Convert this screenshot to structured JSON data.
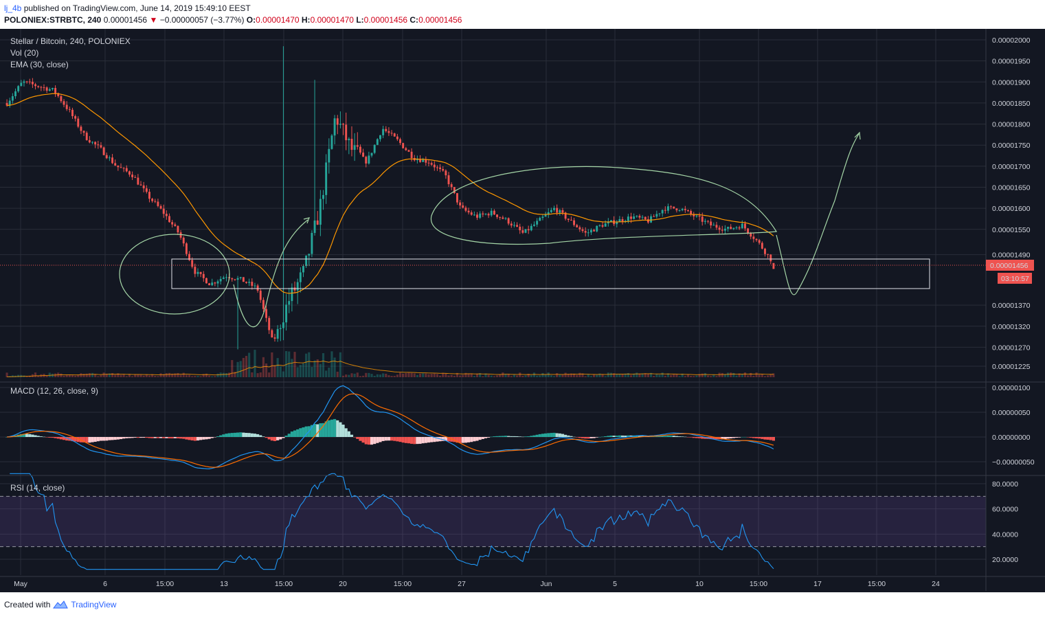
{
  "header": {
    "user": "lj_4b",
    "published": "published on TradingView.com, June 14, 2019 15:49:10 EEST",
    "symbol": "POLONIEX:STRBTC, 240",
    "last": "0.00001456",
    "change_arrow": "▼",
    "change": "−0.00000057 (−3.77%)",
    "o_label": "O:",
    "o_value": "0.00001470",
    "h_label": "H:",
    "h_value": "0.00001470",
    "l_label": "L:",
    "l_value": "0.00001456",
    "c_label": "C:",
    "c_value": "0.00001456"
  },
  "legend": {
    "title": "Stellar / Bitcoin, 240, POLONIEX",
    "vol": "Vol (20)",
    "ema": "EMA (30, close)",
    "macd": "MACD (12, 26, close, 9)",
    "rsi": "RSI (14, close)"
  },
  "footer": {
    "created_with": "Created with",
    "brand": "TradingView"
  },
  "colors": {
    "background": "#131722",
    "grid": "#2a2e39",
    "up": "#26a69a",
    "down": "#ef5350",
    "ema": "#ff9800",
    "macd_line": "#2196f3",
    "signal_line": "#ff6d00",
    "rsi_line": "#2196f3",
    "rsi_band": "#7e57c2",
    "drawing": "#a5d6a7",
    "price_line": "#ef5350"
  },
  "chart_data": {
    "type": "candlestick",
    "symbol": "POLONIEX:STRBTC",
    "interval": "240",
    "last_price": "0.00001456",
    "countdown": "03:10:57",
    "price_axis": {
      "ticks": [
        "0.00002000",
        "0.00001950",
        "0.00001900",
        "0.00001850",
        "0.00001800",
        "0.00001750",
        "0.00001700",
        "0.00001650",
        "0.00001600",
        "0.00001550",
        "0.00001490",
        "0.00001456",
        "0.00001370",
        "0.00001320",
        "0.00001270",
        "0.00001225"
      ],
      "ylim": [
        1.21e-05,
        2.02e-05
      ]
    },
    "macd_axis": {
      "ticks": [
        "0.00000100",
        "0.00000050",
        "0.00000000",
        "−0.00000050"
      ]
    },
    "rsi_axis": {
      "ticks": [
        "80.0000",
        "60.0000",
        "40.0000",
        "20.0000"
      ],
      "bands": [
        30,
        70
      ]
    },
    "time_axis": {
      "labels": [
        "May",
        "6",
        "15:00",
        "13",
        "15:00",
        "20",
        "15:00",
        "27",
        "Jun",
        "5",
        "10",
        "15:00",
        "17",
        "15:00",
        "24"
      ]
    },
    "close_path": [
      [
        0,
        1.85e-05
      ],
      [
        1,
        1.9e-05
      ],
      [
        2,
        1.89e-05
      ],
      [
        3,
        1.88e-05
      ],
      [
        4,
        1.83e-05
      ],
      [
        5,
        1.77e-05
      ],
      [
        6,
        1.74e-05
      ],
      [
        7,
        1.7e-05
      ],
      [
        8,
        1.68e-05
      ],
      [
        9,
        1.63e-05
      ],
      [
        10,
        1.59e-05
      ],
      [
        11,
        1.54e-05
      ],
      [
        12,
        1.45e-05
      ],
      [
        13,
        1.42e-05
      ],
      [
        14,
        1.44e-05
      ],
      [
        15,
        1.43e-05
      ],
      [
        16,
        1.41e-05
      ],
      [
        17,
        1.28e-05
      ],
      [
        18,
        1.38e-05
      ],
      [
        19,
        1.45e-05
      ],
      [
        20,
        1.6e-05
      ],
      [
        21,
        1.82e-05
      ],
      [
        22,
        1.74e-05
      ],
      [
        23,
        1.71e-05
      ],
      [
        24,
        1.79e-05
      ],
      [
        25,
        1.76e-05
      ],
      [
        26,
        1.72e-05
      ],
      [
        27,
        1.71e-05
      ],
      [
        28,
        1.68e-05
      ],
      [
        29,
        1.6e-05
      ],
      [
        30,
        1.58e-05
      ],
      [
        31,
        1.59e-05
      ],
      [
        32,
        1.57e-05
      ],
      [
        33,
        1.54e-05
      ],
      [
        34,
        1.57e-05
      ],
      [
        35,
        1.6e-05
      ],
      [
        36,
        1.57e-05
      ],
      [
        37,
        1.54e-05
      ],
      [
        38,
        1.56e-05
      ],
      [
        39,
        1.57e-05
      ],
      [
        40,
        1.58e-05
      ],
      [
        41,
        1.57e-05
      ],
      [
        42,
        1.6e-05
      ],
      [
        43,
        1.6e-05
      ],
      [
        44,
        1.58e-05
      ],
      [
        45,
        1.56e-05
      ],
      [
        46,
        1.55e-05
      ],
      [
        47,
        1.56e-05
      ],
      [
        48,
        1.52e-05
      ],
      [
        49,
        1.47e-05
      ]
    ]
  }
}
